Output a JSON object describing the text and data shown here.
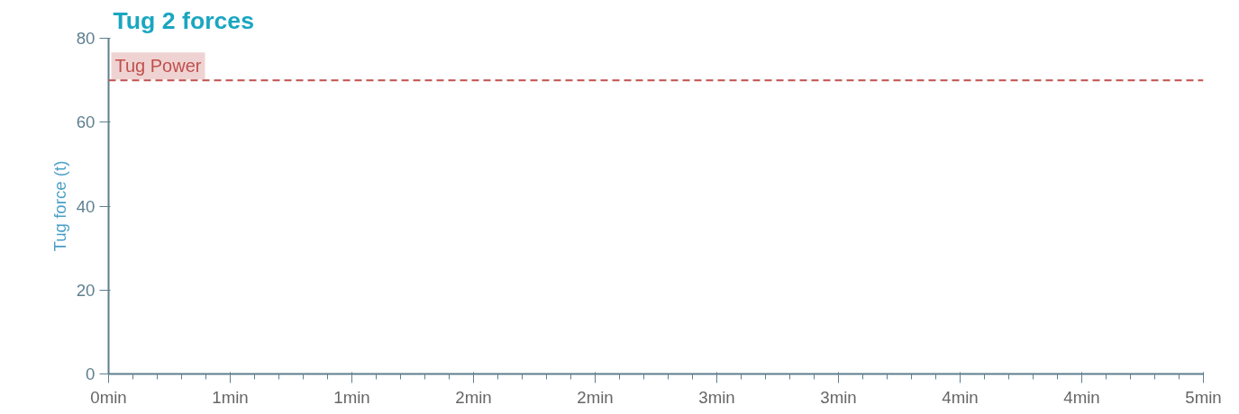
{
  "chart_data": {
    "type": "line",
    "title": "Tug 2 forces",
    "ylabel": "Tug force (t)",
    "xlim": [
      0,
      4.5
    ],
    "xticks": [
      {
        "value": 0,
        "label": "0min"
      },
      {
        "value": 0.5,
        "label": "1min"
      },
      {
        "value": 1,
        "label": "1min"
      },
      {
        "value": 1.5,
        "label": "2min"
      },
      {
        "value": 2,
        "label": "2min"
      },
      {
        "value": 2.5,
        "label": "3min"
      },
      {
        "value": 3,
        "label": "3min"
      },
      {
        "value": 3.5,
        "label": "4min"
      },
      {
        "value": 4,
        "label": "4min"
      },
      {
        "value": 4.5,
        "label": "5min"
      }
    ],
    "ylim": [
      0,
      80
    ],
    "yticks": [
      0,
      20,
      40,
      60,
      80
    ],
    "grid": false,
    "ref_lines": [
      {
        "axis": "y",
        "value": 70,
        "label": "Tug Power",
        "color": "#c0504d",
        "line_style": "dashed"
      }
    ]
  }
}
